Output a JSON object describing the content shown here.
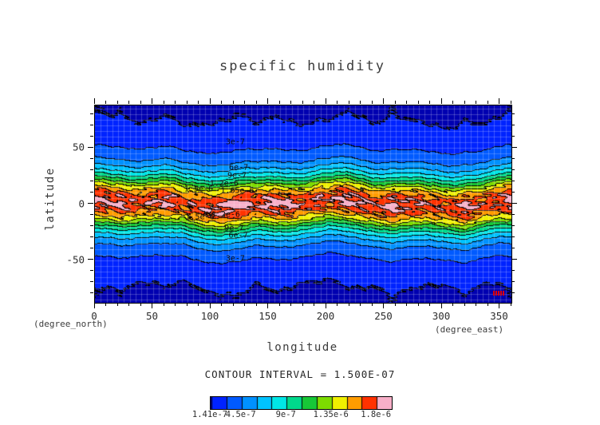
{
  "page": {
    "background": "#ffffff"
  },
  "chart_data": {
    "type": "heatmap",
    "subtype": "filled-contour",
    "title": "specific humidity",
    "xlabel": "longitude",
    "ylabel": "latitude",
    "x_unit_label": "(degree_east)",
    "y_unit_label": "(degree_north)",
    "xlim": [
      0,
      360
    ],
    "ylim": [
      -88,
      88
    ],
    "x_ticks": [
      0,
      50,
      100,
      150,
      200,
      250,
      300,
      350
    ],
    "x_minor_step": 10,
    "y_ticks": [
      -50,
      0,
      50
    ],
    "y_minor_step": 10,
    "grid": true,
    "grid_step_deg": 5,
    "contour_interval": 1.5e-07,
    "contour_interval_label": "CONTOUR INTERVAL = 1.500E-07",
    "palette": [
      "#0000b0",
      "#0023ff",
      "#005aff",
      "#0091ff",
      "#00c3ff",
      "#00e6e6",
      "#00d98c",
      "#17c837",
      "#7ddc00",
      "#f0f000",
      "#ff9c00",
      "#ff3200",
      "#f7afc8"
    ],
    "colorbar": {
      "min": 1.41e-07,
      "max": 1.95e-06,
      "tick_labels": [
        {
          "text": "1.41e-7",
          "value": 1.41e-07
        },
        {
          "text": "4.5e-7",
          "value": 4.5e-07
        },
        {
          "text": "9e-7",
          "value": 9e-07
        },
        {
          "text": "1.35e-6",
          "value": 1.35e-06
        },
        {
          "text": "1.8e-6",
          "value": 1.8e-06
        }
      ]
    },
    "zonal_mean_profile": {
      "lat": [
        -88,
        -80,
        -70,
        -60,
        -55,
        -50,
        -45,
        -40,
        -35,
        -30,
        -25,
        -20,
        -15,
        -10,
        -5,
        0,
        5,
        10,
        15,
        20,
        25,
        30,
        35,
        40,
        45,
        50,
        55,
        60,
        70,
        80,
        88
      ],
      "q": [
        1.41e-07,
        1.43e-07,
        1.56e-07,
        2e-07,
        2.4e-07,
        2.85e-07,
        3.4e-07,
        4e-07,
        5.1e-07,
        6.6e-07,
        8.6e-07,
        1.1e-06,
        1.38e-06,
        1.6e-06,
        1.73e-06,
        1.78e-06,
        1.73e-06,
        1.6e-06,
        1.38e-06,
        1.1e-06,
        8.6e-07,
        6.6e-07,
        5.1e-07,
        4e-07,
        3.4e-07,
        2.85e-07,
        2.4e-07,
        2e-07,
        1.56e-07,
        1.43e-07,
        1.41e-07
      ]
    },
    "contour_labels": [
      {
        "text": "3e-7",
        "fx": 0.337,
        "fy": 0.185
      },
      {
        "text": "6e-7",
        "fx": 0.345,
        "fy": 0.315
      },
      {
        "text": "9e-7",
        "fx": 0.341,
        "fy": 0.355
      },
      {
        "text": "1.2e-6",
        "fx": 0.31,
        "fy": 0.396
      },
      {
        "text": "1.5e-6",
        "fx": 0.249,
        "fy": 0.424
      },
      {
        "text": "1.65e-6",
        "fx": 0.342,
        "fy": 0.432
      },
      {
        "text": "1.2e-6",
        "fx": 0.314,
        "fy": 0.553
      },
      {
        "text": "1.5e-6",
        "fx": 0.252,
        "fy": 0.566
      },
      {
        "text": "9e-7",
        "fx": 0.334,
        "fy": 0.625
      },
      {
        "text": "6e-7",
        "fx": 0.344,
        "fy": 0.659
      },
      {
        "text": "3e-7",
        "fx": 0.337,
        "fy": 0.776
      }
    ],
    "stamp": {
      "color": "#dd0000"
    }
  }
}
